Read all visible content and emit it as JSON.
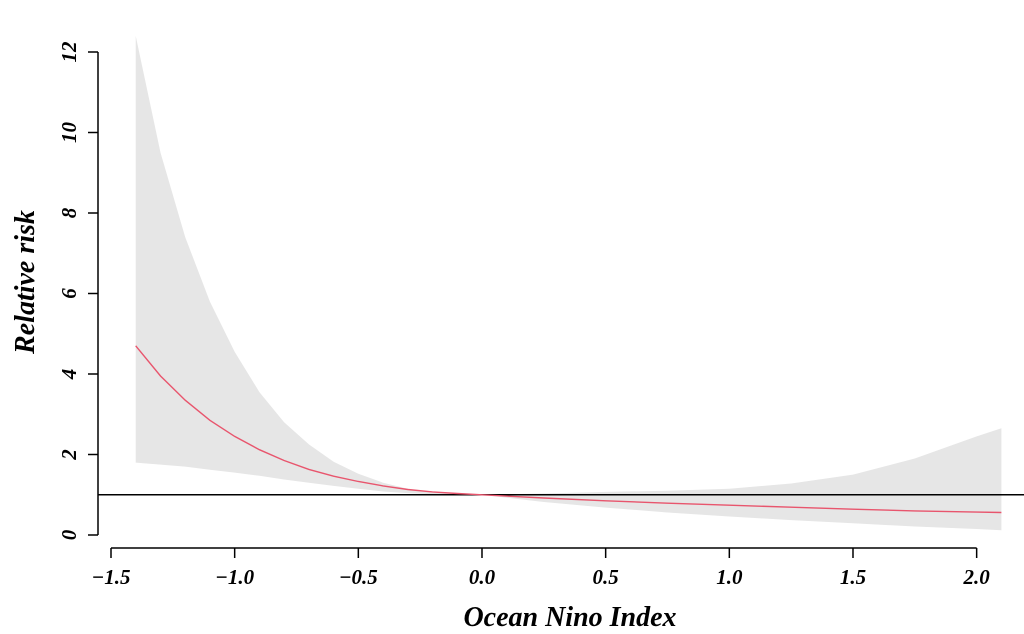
{
  "chart_data": {
    "type": "line",
    "title": "",
    "xlabel": "Ocean Nino Index",
    "ylabel": "Relative risk",
    "xlim": [
      -1.5,
      2.15
    ],
    "ylim": [
      0,
      12.5
    ],
    "x_ticks": [
      -1.5,
      -1.0,
      -0.5,
      0.0,
      0.5,
      1.0,
      1.5,
      2.0
    ],
    "x_tick_labels": [
      "−1.5",
      "−1.0",
      "−0.5",
      "0.0",
      "0.5",
      "1.0",
      "1.5",
      "2.0"
    ],
    "y_ticks": [
      0,
      2,
      4,
      6,
      8,
      10,
      12
    ],
    "y_tick_labels": [
      "0",
      "2",
      "4",
      "6",
      "8",
      "10",
      "12"
    ],
    "reference_line": {
      "y": 1,
      "color": "#000000"
    },
    "grid": false,
    "colors": {
      "line": "#e8556d",
      "band": "#e6e6e6"
    },
    "series": [
      {
        "x": [
          -1.4,
          -1.3,
          -1.2,
          -1.1,
          -1.0,
          -0.9,
          -0.8,
          -0.7,
          -0.6,
          -0.5,
          -0.4,
          -0.3,
          -0.2,
          -0.1,
          0.0,
          0.25,
          0.5,
          0.75,
          1.0,
          1.25,
          1.5,
          1.75,
          2.0,
          2.1
        ],
        "y": [
          4.7,
          3.95,
          3.35,
          2.85,
          2.45,
          2.12,
          1.85,
          1.63,
          1.46,
          1.33,
          1.22,
          1.13,
          1.07,
          1.03,
          1.0,
          0.92,
          0.85,
          0.79,
          0.74,
          0.69,
          0.64,
          0.6,
          0.57,
          0.56
        ],
        "lower": [
          1.8,
          1.75,
          1.7,
          1.62,
          1.55,
          1.47,
          1.38,
          1.3,
          1.22,
          1.15,
          1.08,
          1.04,
          1.01,
          1.0,
          1.0,
          0.82,
          0.68,
          0.56,
          0.46,
          0.37,
          0.29,
          0.21,
          0.15,
          0.12
        ],
        "upper": [
          12.4,
          9.5,
          7.4,
          5.8,
          4.55,
          3.55,
          2.8,
          2.25,
          1.82,
          1.52,
          1.3,
          1.15,
          1.07,
          1.02,
          1.0,
          1.03,
          1.07,
          1.1,
          1.15,
          1.28,
          1.5,
          1.9,
          2.45,
          2.65
        ]
      }
    ]
  }
}
